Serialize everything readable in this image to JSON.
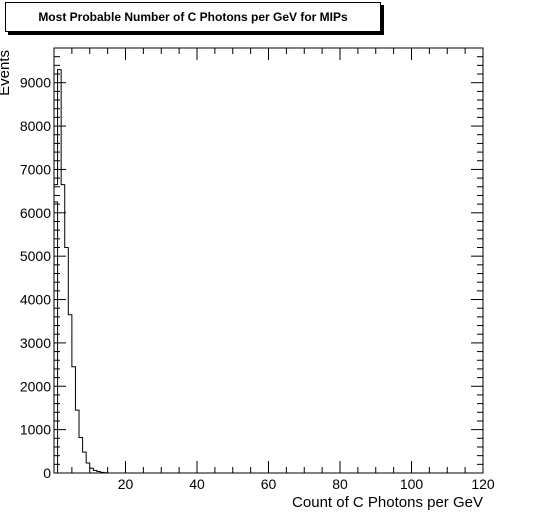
{
  "chart_data": {
    "type": "bar",
    "title": "Most Probable Number of C Photons per GeV for MIPs",
    "xlabel": "Count of C Photons per GeV",
    "ylabel": "Events",
    "xlim": [
      0,
      120
    ],
    "ylim": [
      0,
      9800
    ],
    "x_ticks": [
      20,
      40,
      60,
      80,
      100,
      120
    ],
    "x_tick_labels": [
      "20",
      "40",
      "60",
      "80",
      "100",
      "120"
    ],
    "y_ticks": [
      0,
      1000,
      2000,
      3000,
      4000,
      5000,
      6000,
      7000,
      8000,
      9000
    ],
    "y_tick_labels": [
      "0",
      "1000",
      "2000",
      "3000",
      "4000",
      "5000",
      "6000",
      "7000",
      "8000",
      "9000"
    ],
    "bin_edges": [
      0,
      1,
      2,
      3,
      4,
      5,
      6,
      7,
      8,
      9,
      10,
      11,
      12,
      13,
      14,
      15
    ],
    "values": [
      6650,
      9300,
      6650,
      5200,
      3650,
      2450,
      1450,
      820,
      480,
      230,
      110,
      60,
      35,
      15,
      5
    ],
    "secondary_values": [
      6250
    ],
    "grid": false,
    "legend": "none"
  }
}
